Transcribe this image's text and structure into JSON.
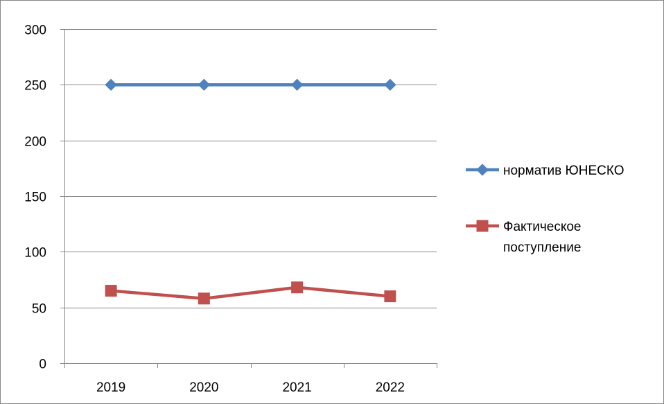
{
  "chart_data": {
    "type": "line",
    "title": "",
    "xlabel": "",
    "ylabel": "",
    "categories": [
      "2019",
      "2020",
      "2021",
      "2022"
    ],
    "ylim": [
      0,
      300
    ],
    "yticks": [
      0,
      50,
      100,
      150,
      200,
      250,
      300
    ],
    "grid": "horizontal",
    "legend_position": "right",
    "series": [
      {
        "name": "норматив ЮНЕСКО",
        "values": [
          250,
          250,
          250,
          250
        ],
        "color": "#4F81BD",
        "marker": "diamond"
      },
      {
        "name": "Фактическое поступление",
        "legend_lines": [
          "Фактическое",
          "поступление"
        ],
        "values": [
          65,
          58,
          68,
          60
        ],
        "color": "#C0504D",
        "marker": "square"
      }
    ]
  }
}
